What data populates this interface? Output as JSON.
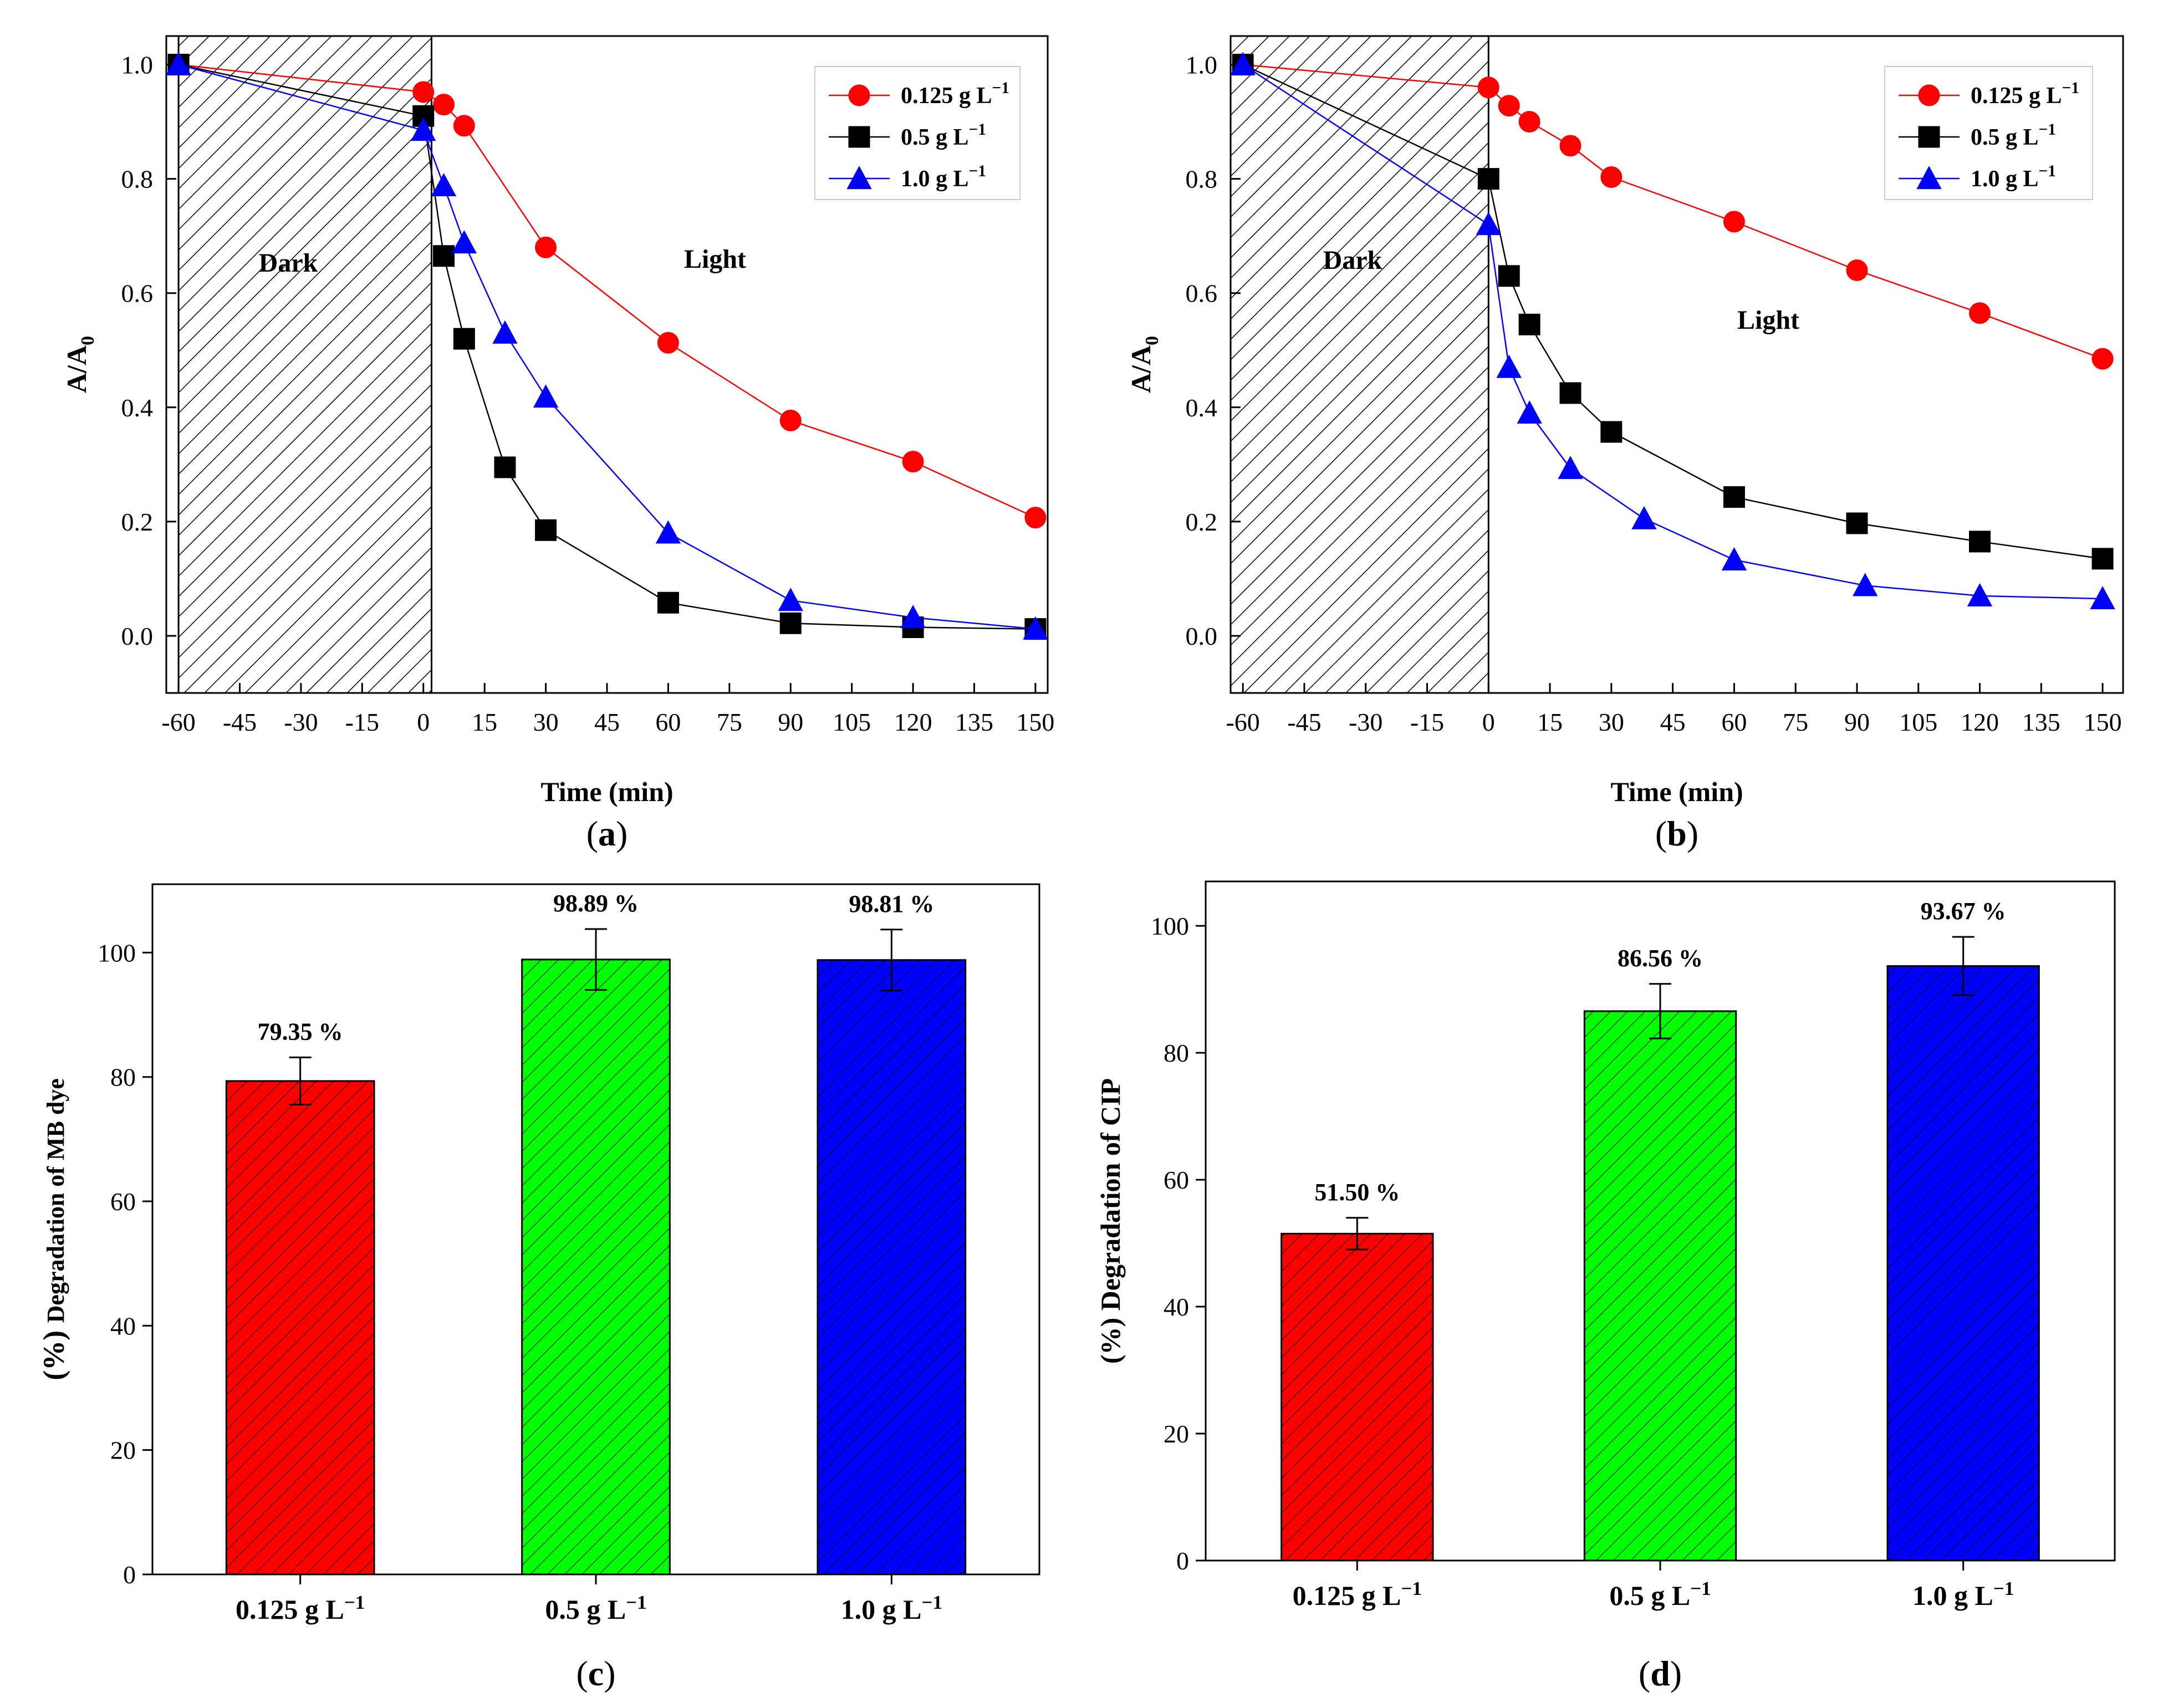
{
  "figure_panels": [
    "a",
    "b",
    "c",
    "d"
  ],
  "chart_data": [
    {
      "panel": "a",
      "type": "line",
      "panel_label": "a",
      "xlabel": "Time (min)",
      "ylabel": "A/A0",
      "xlim": [
        -63,
        153
      ],
      "ylim": [
        -0.1,
        1.05
      ],
      "xticks": [
        -60,
        -45,
        -30,
        -15,
        0,
        15,
        30,
        45,
        60,
        75,
        90,
        105,
        120,
        135,
        150
      ],
      "yticks": [
        0.0,
        0.2,
        0.4,
        0.6,
        0.8,
        1.0
      ],
      "dark_region": {
        "label": "Dark",
        "x_start": -60,
        "x_end": 2
      },
      "light_label": "Light",
      "legend_position": "top-right",
      "series": [
        {
          "name": "0.125 g L⁻¹",
          "marker": "circle",
          "color": "#ff0000",
          "x": [
            -60,
            0,
            5,
            10,
            30,
            60,
            90,
            120,
            150
          ],
          "values": [
            1.0,
            0.952,
            0.93,
            0.893,
            0.68,
            0.513,
            0.377,
            0.305,
            0.207
          ]
        },
        {
          "name": "0.5 g L⁻¹",
          "marker": "square",
          "color": "#000000",
          "x": [
            -60,
            0,
            5,
            10,
            20,
            30,
            60,
            90,
            120,
            150
          ],
          "values": [
            1.0,
            0.91,
            0.665,
            0.52,
            0.295,
            0.185,
            0.058,
            0.022,
            0.015,
            0.012
          ]
        },
        {
          "name": "1.0 g L⁻¹",
          "marker": "triangle",
          "color": "#0000ff",
          "x": [
            -60,
            0,
            5,
            10,
            20,
            30,
            60,
            90,
            120,
            150
          ],
          "values": [
            1.0,
            0.885,
            0.788,
            0.688,
            0.53,
            0.418,
            0.18,
            0.062,
            0.032,
            0.012
          ]
        }
      ]
    },
    {
      "panel": "b",
      "type": "line",
      "panel_label": "b",
      "xlabel": "Time (min)",
      "ylabel": "A/A0",
      "xlim": [
        -63,
        155
      ],
      "ylim": [
        -0.1,
        1.05
      ],
      "xticks": [
        -60,
        -45,
        -30,
        -15,
        0,
        15,
        30,
        45,
        60,
        75,
        90,
        105,
        120,
        135,
        150
      ],
      "yticks": [
        0.0,
        0.2,
        0.4,
        0.6,
        0.8,
        1.0
      ],
      "dark_region": {
        "label": "Dark",
        "x_start": -63,
        "x_end": 0
      },
      "light_label": "Light",
      "legend_position": "top-right",
      "series": [
        {
          "name": "0.125 g L⁻¹",
          "marker": "circle",
          "color": "#ff0000",
          "x": [
            -60,
            0,
            5,
            10,
            20,
            30,
            60,
            90,
            120,
            150
          ],
          "values": [
            1.0,
            0.96,
            0.928,
            0.9,
            0.858,
            0.803,
            0.725,
            0.64,
            0.565,
            0.485
          ]
        },
        {
          "name": "0.5 g L⁻¹",
          "marker": "square",
          "color": "#000000",
          "x": [
            -60,
            0,
            5,
            10,
            20,
            30,
            60,
            90,
            120,
            150
          ],
          "values": [
            1.0,
            0.8,
            0.63,
            0.545,
            0.425,
            0.357,
            0.243,
            0.197,
            0.165,
            0.135
          ]
        },
        {
          "name": "1.0 g L⁻¹",
          "marker": "triangle",
          "color": "#0000ff",
          "x": [
            -60,
            0,
            5,
            10,
            20,
            38,
            60,
            92,
            120,
            150
          ],
          "values": [
            1.0,
            0.72,
            0.47,
            0.39,
            0.293,
            0.205,
            0.133,
            0.088,
            0.07,
            0.065
          ]
        }
      ]
    },
    {
      "panel": "c",
      "type": "bar",
      "panel_label": "c",
      "ylabel_prefix": "(%)",
      "ylabel": "Degradation of MB dye",
      "ylim": [
        0,
        111
      ],
      "yticks": [
        0,
        20,
        40,
        60,
        80,
        100
      ],
      "categories": [
        "0.125 g L⁻¹",
        "0.5 g L⁻¹",
        "1.0 g L⁻¹"
      ],
      "values": [
        79.35,
        98.89,
        98.81
      ],
      "errors": [
        3.8,
        4.9,
        4.9
      ],
      "data_labels": [
        "79.35 %",
        "98.89  %",
        "98.81  %"
      ],
      "colors": [
        "#ff0000",
        "#00ff00",
        "#0000ff"
      ]
    },
    {
      "panel": "d",
      "type": "bar",
      "panel_label": "d",
      "ylabel": "(%) Degradation of CIP",
      "ylim": [
        0,
        107
      ],
      "yticks": [
        0,
        20,
        40,
        60,
        80,
        100
      ],
      "categories": [
        "0.125 g L⁻¹",
        "0.5 g L⁻¹",
        "1.0 g L⁻¹"
      ],
      "values": [
        51.5,
        86.56,
        93.67
      ],
      "errors": [
        2.5,
        4.3,
        4.6
      ],
      "data_labels": [
        "51.50 %",
        "86.56 %",
        "93.67 %"
      ],
      "colors": [
        "#ff0000",
        "#00ff00",
        "#0000ff"
      ]
    }
  ]
}
